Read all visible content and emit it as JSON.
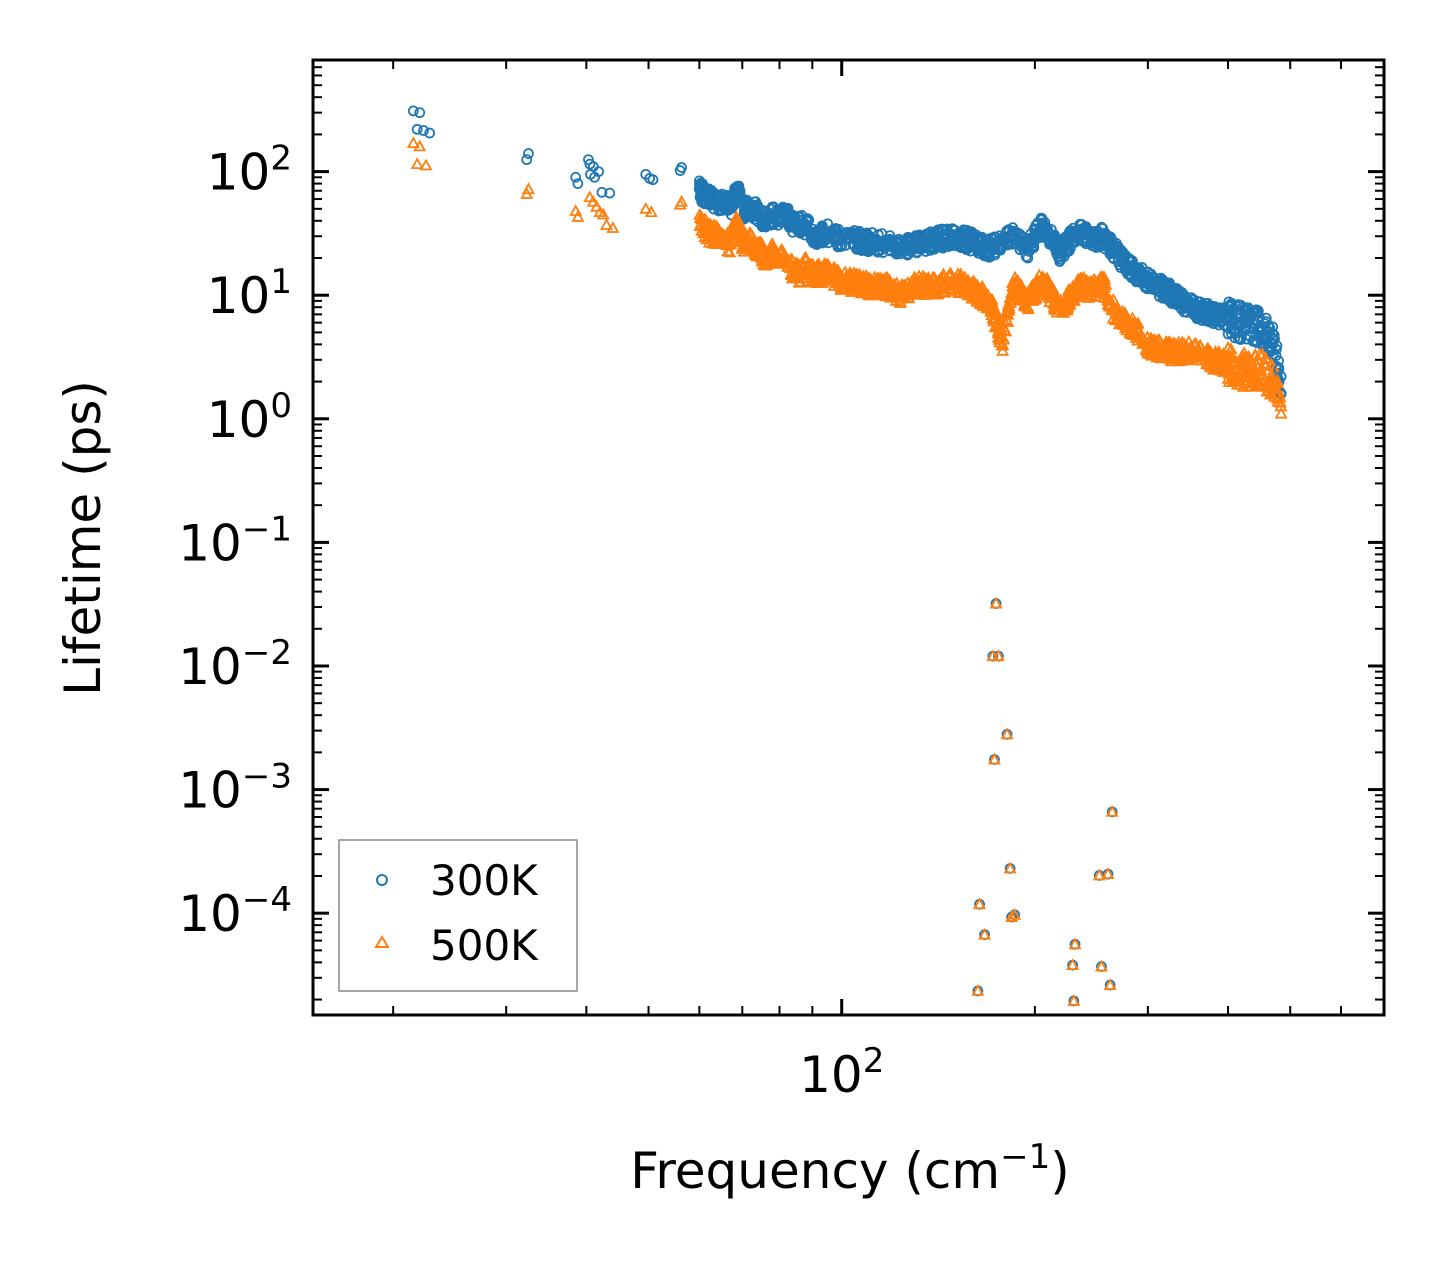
{
  "chart_data": {
    "type": "scatter",
    "title": "",
    "xlabel": "Frequency (cm",
    "xlabel_sup": "−1",
    "xlabel_suffix": ")",
    "ylabel": "Lifetime (ps)",
    "xscale": "log",
    "yscale": "log",
    "xlim": [
      15,
      700
    ],
    "ylim": [
      1.5e-05,
      800
    ],
    "x_ticks": [
      {
        "value": 100,
        "base": "10",
        "exp": "2"
      }
    ],
    "y_ticks": [
      {
        "value": 100,
        "base": "10",
        "exp": "2"
      },
      {
        "value": 10,
        "base": "10",
        "exp": "1"
      },
      {
        "value": 1,
        "base": "10",
        "exp": "0"
      },
      {
        "value": 0.1,
        "base": "10",
        "exp": "−1"
      },
      {
        "value": 0.01,
        "base": "10",
        "exp": "−2"
      },
      {
        "value": 0.001,
        "base": "10",
        "exp": "−3"
      },
      {
        "value": 0.0001,
        "base": "10",
        "exp": "−4"
      }
    ],
    "legend": {
      "position": "lower-left"
    },
    "series": [
      {
        "name": "300K",
        "marker": "circle",
        "color": "#1f77b4",
        "points": [
          [
            21.5,
            310
          ],
          [
            22,
            300
          ],
          [
            21.8,
            220
          ],
          [
            22.3,
            215
          ],
          [
            22.8,
            205
          ],
          [
            32.5,
            140
          ],
          [
            32.3,
            125
          ],
          [
            38.5,
            90
          ],
          [
            38.8,
            80
          ],
          [
            40.3,
            125
          ],
          [
            40.5,
            115
          ],
          [
            41,
            110
          ],
          [
            40.6,
            95
          ],
          [
            41.2,
            90
          ],
          [
            41.8,
            100
          ],
          [
            42.3,
            68
          ],
          [
            43.5,
            67
          ],
          [
            49.5,
            95
          ],
          [
            50.2,
            88
          ],
          [
            50.8,
            86
          ],
          [
            56.3,
            108
          ],
          [
            56,
            102
          ],
          [
            61,
            65
          ],
          [
            62,
            62
          ],
          [
            63,
            60
          ],
          [
            64,
            55
          ],
          [
            66,
            58
          ],
          [
            67.5,
            52
          ],
          [
            68.5,
            72
          ],
          [
            69.5,
            65
          ],
          [
            70.5,
            48
          ],
          [
            72,
            53
          ],
          [
            74,
            47
          ],
          [
            76,
            40
          ],
          [
            78,
            44
          ],
          [
            80,
            42
          ],
          [
            82,
            45
          ],
          [
            84,
            38
          ],
          [
            86,
            38
          ],
          [
            88,
            36
          ],
          [
            90,
            32
          ],
          [
            92,
            30
          ],
          [
            95,
            32
          ],
          [
            100,
            28
          ],
          [
            105,
            28
          ],
          [
            110,
            27
          ],
          [
            118,
            26
          ],
          [
            125,
            24
          ],
          [
            130,
            26
          ],
          [
            140,
            28
          ],
          [
            150,
            30
          ],
          [
            160,
            27
          ],
          [
            170,
            24
          ],
          [
            180,
            28
          ],
          [
            185,
            30
          ],
          [
            195,
            24
          ],
          [
            205,
            37
          ],
          [
            210,
            32
          ],
          [
            218,
            22
          ],
          [
            230,
            30
          ],
          [
            235,
            34
          ],
          [
            245,
            28
          ],
          [
            255,
            30
          ],
          [
            260,
            26
          ],
          [
            268,
            22
          ],
          [
            280,
            17
          ],
          [
            300,
            13
          ],
          [
            320,
            11
          ],
          [
            350,
            8
          ],
          [
            380,
            7
          ],
          [
            420,
            6
          ],
          [
            450,
            5.5
          ],
          [
            470,
            4
          ],
          [
            480,
            2.5
          ],
          [
            484,
            1.6
          ],
          [
            163,
            2.35e-05
          ],
          [
            164,
            0.000118
          ],
          [
            167,
            6.7e-05
          ],
          [
            174,
            0.032
          ],
          [
            172,
            0.012
          ],
          [
            175.5,
            0.012
          ],
          [
            173,
            0.00175
          ],
          [
            181,
            0.0028
          ],
          [
            183,
            0.00023
          ],
          [
            184,
            9.3e-05
          ],
          [
            186,
            9.7e-05
          ],
          [
            230,
            1.95e-05
          ],
          [
            229,
            3.8e-05
          ],
          [
            231,
            5.6e-05
          ],
          [
            252,
            0.000202
          ],
          [
            254,
            3.7e-05
          ],
          [
            260,
            0.000207
          ],
          [
            262,
            2.62e-05
          ],
          [
            264,
            0.00066
          ]
        ]
      },
      {
        "name": "500K",
        "marker": "triangle",
        "color": "#ff7f0e",
        "points": [
          [
            21.5,
            170
          ],
          [
            22,
            160
          ],
          [
            21.8,
            115
          ],
          [
            22.5,
            112
          ],
          [
            32.5,
            72
          ],
          [
            32.3,
            66
          ],
          [
            38.5,
            48
          ],
          [
            38.8,
            43
          ],
          [
            40.5,
            62
          ],
          [
            41,
            57
          ],
          [
            41.5,
            52
          ],
          [
            42,
            47
          ],
          [
            42.5,
            45
          ],
          [
            43,
            37
          ],
          [
            44,
            35
          ],
          [
            49.5,
            50
          ],
          [
            50.5,
            47
          ],
          [
            56.3,
            57
          ],
          [
            56,
            54
          ],
          [
            61,
            36
          ],
          [
            62,
            32
          ],
          [
            63,
            31
          ],
          [
            64,
            30
          ],
          [
            66,
            28
          ],
          [
            67,
            26
          ],
          [
            68.5,
            38
          ],
          [
            69.5,
            32
          ],
          [
            70.5,
            25
          ],
          [
            72,
            27
          ],
          [
            74,
            24
          ],
          [
            76,
            20
          ],
          [
            78,
            22
          ],
          [
            80,
            20
          ],
          [
            82,
            18
          ],
          [
            84,
            16
          ],
          [
            86,
            15
          ],
          [
            88,
            17
          ],
          [
            90,
            15
          ],
          [
            95,
            15
          ],
          [
            100,
            13
          ],
          [
            105,
            12.5
          ],
          [
            110,
            12
          ],
          [
            118,
            11.5
          ],
          [
            125,
            10
          ],
          [
            130,
            12
          ],
          [
            140,
            12
          ],
          [
            150,
            13
          ],
          [
            160,
            11
          ],
          [
            170,
            9
          ],
          [
            176,
            5
          ],
          [
            178,
            4
          ],
          [
            185,
            12
          ],
          [
            195,
            9
          ],
          [
            205,
            13
          ],
          [
            210,
            11
          ],
          [
            218,
            8
          ],
          [
            230,
            10
          ],
          [
            235,
            12
          ],
          [
            245,
            11
          ],
          [
            255,
            13
          ],
          [
            260,
            9
          ],
          [
            268,
            7
          ],
          [
            280,
            6
          ],
          [
            300,
            4
          ],
          [
            320,
            3.5
          ],
          [
            350,
            3.5
          ],
          [
            380,
            3
          ],
          [
            420,
            2.5
          ],
          [
            450,
            2.5
          ],
          [
            470,
            2
          ],
          [
            480,
            1.6
          ],
          [
            484,
            1.1
          ],
          [
            163,
            2.35e-05
          ],
          [
            164,
            0.000118
          ],
          [
            167,
            6.7e-05
          ],
          [
            174,
            0.032
          ],
          [
            172,
            0.012
          ],
          [
            175.5,
            0.012
          ],
          [
            173,
            0.00175
          ],
          [
            181,
            0.0028
          ],
          [
            183,
            0.00023
          ],
          [
            184,
            9.3e-05
          ],
          [
            186,
            9.7e-05
          ],
          [
            230,
            1.95e-05
          ],
          [
            229,
            3.8e-05
          ],
          [
            231,
            5.6e-05
          ],
          [
            252,
            0.000202
          ],
          [
            254,
            3.7e-05
          ],
          [
            260,
            0.000207
          ],
          [
            262,
            2.62e-05
          ],
          [
            264,
            0.00066
          ]
        ]
      }
    ]
  }
}
